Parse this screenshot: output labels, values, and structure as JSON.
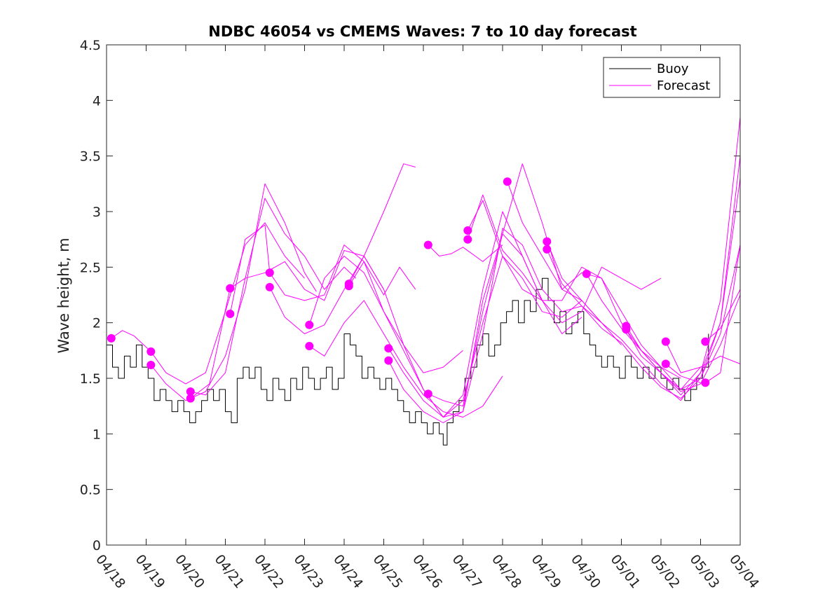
{
  "chart_data": {
    "type": "line",
    "title": "NDBC 46054 vs CMEMS Waves: 7 to 10 day forecast",
    "ylabel": "Wave height, m",
    "xlabel": "",
    "xlim": [
      0,
      16
    ],
    "ylim": [
      0,
      4.5
    ],
    "yticks": [
      0,
      0.5,
      1,
      1.5,
      2,
      2.5,
      3,
      3.5,
      4,
      4.5
    ],
    "ytick_labels": [
      "0",
      "0.5",
      "1",
      "1.5",
      "2",
      "2.5",
      "3",
      "3.5",
      "4",
      "4.5"
    ],
    "xticks": [
      0,
      1,
      2,
      3,
      4,
      5,
      6,
      7,
      8,
      9,
      10,
      11,
      12,
      13,
      14,
      15,
      16
    ],
    "xtick_labels": [
      "04/18",
      "04/19",
      "04/20",
      "04/21",
      "04/22",
      "04/23",
      "04/24",
      "04/25",
      "04/26",
      "04/27",
      "04/28",
      "04/29",
      "04/30",
      "05/01",
      "05/02",
      "05/03",
      "05/04"
    ],
    "grid": false,
    "legend_position": "top-right",
    "legend": [
      "Buoy",
      "Forecast"
    ],
    "colors": {
      "buoy": "#000000",
      "forecast": "#ff00ff",
      "axis": "#262626"
    },
    "series": [
      {
        "name": "Buoy",
        "color": "#000000",
        "x": [
          0,
          0.15,
          0.3,
          0.45,
          0.6,
          0.75,
          0.9,
          1.05,
          1.2,
          1.35,
          1.5,
          1.65,
          1.8,
          1.95,
          2.1,
          2.25,
          2.4,
          2.55,
          2.7,
          2.85,
          3,
          3.15,
          3.3,
          3.45,
          3.6,
          3.75,
          3.9,
          4.05,
          4.2,
          4.35,
          4.5,
          4.65,
          4.8,
          4.95,
          5.1,
          5.25,
          5.4,
          5.55,
          5.7,
          5.85,
          6,
          6.15,
          6.3,
          6.45,
          6.6,
          6.75,
          6.9,
          7.05,
          7.2,
          7.35,
          7.5,
          7.65,
          7.8,
          7.95,
          8.1,
          8.25,
          8.4,
          8.5,
          8.6,
          8.75,
          8.9,
          9.05,
          9.2,
          9.35,
          9.5,
          9.65,
          9.8,
          9.95,
          10.1,
          10.25,
          10.4,
          10.55,
          10.7,
          10.85,
          11,
          11.15,
          11.3,
          11.45,
          11.6,
          11.75,
          11.9,
          12.05,
          12.2,
          12.35,
          12.5,
          12.65,
          12.8,
          12.95,
          13.1,
          13.25,
          13.4,
          13.55,
          13.7,
          13.85,
          14,
          14.15,
          14.3,
          14.45,
          14.6,
          14.75,
          14.9,
          15.05,
          15.2
        ],
        "values": [
          1.8,
          1.6,
          1.5,
          1.7,
          1.6,
          1.8,
          1.6,
          1.5,
          1.3,
          1.4,
          1.3,
          1.2,
          1.3,
          1.2,
          1.1,
          1.2,
          1.3,
          1.4,
          1.3,
          1.4,
          1.2,
          1.1,
          1.5,
          1.6,
          1.5,
          1.6,
          1.4,
          1.3,
          1.5,
          1.4,
          1.3,
          1.5,
          1.4,
          1.6,
          1.5,
          1.4,
          1.5,
          1.6,
          1.4,
          1.5,
          1.9,
          1.8,
          1.7,
          1.5,
          1.6,
          1.5,
          1.4,
          1.5,
          1.4,
          1.3,
          1.2,
          1.1,
          1.2,
          1.1,
          1.0,
          1.1,
          1.0,
          0.9,
          1.1,
          1.2,
          1.3,
          1.5,
          1.6,
          1.8,
          1.9,
          1.7,
          1.8,
          2.0,
          2.1,
          2.2,
          2.0,
          2.2,
          2.1,
          2.3,
          2.4,
          2.2,
          2.0,
          2.1,
          1.9,
          2.0,
          2.1,
          1.9,
          1.8,
          1.7,
          1.6,
          1.7,
          1.6,
          1.5,
          1.7,
          1.6,
          1.5,
          1.6,
          1.5,
          1.6,
          1.5,
          1.4,
          1.5,
          1.4,
          1.3,
          1.4,
          1.5,
          1.6,
          1.9
        ]
      },
      {
        "name": "Forecast",
        "color": "#ff00ff",
        "x": [
          0.12,
          0.4,
          0.7,
          1.12,
          1.5,
          2.0,
          2.5,
          3.0,
          3.5,
          4.0,
          4.5,
          5.0
        ],
        "values": [
          1.86,
          1.93,
          1.88,
          1.74,
          1.55,
          1.45,
          1.55,
          2.1,
          2.7,
          2.9,
          2.6,
          2.4
        ]
      },
      {
        "name": "",
        "color": "#ff00ff",
        "x": [
          1.12,
          1.5,
          2.0,
          2.5,
          3.0,
          3.5,
          4.0,
          4.5,
          5.0,
          5.3
        ],
        "values": [
          1.62,
          1.45,
          1.3,
          1.38,
          1.7,
          2.3,
          3.25,
          2.9,
          2.45,
          2.28
        ]
      },
      {
        "name": "",
        "color": "#ff00ff",
        "x": [
          2.12,
          2.5,
          3.0,
          3.5,
          4.0,
          4.5,
          5.0,
          5.5,
          6.0,
          6.3
        ],
        "values": [
          1.38,
          1.35,
          1.55,
          2.4,
          3.12,
          2.8,
          2.6,
          2.3,
          2.5,
          2.4
        ]
      },
      {
        "name": "",
        "color": "#ff00ff",
        "x": [
          2.12,
          2.6,
          3.12,
          3.5,
          4.0,
          4.5,
          5.0,
          5.5,
          6.0,
          6.5,
          7.0
        ],
        "values": [
          1.32,
          1.45,
          2.31,
          2.4,
          2.45,
          2.55,
          2.3,
          2.2,
          2.65,
          2.6,
          2.3
        ]
      },
      {
        "name": "",
        "color": "#ff00ff",
        "x": [
          3.12,
          3.5,
          4.0,
          4.12,
          4.5,
          5.0,
          5.5,
          6.0,
          6.5,
          7.0,
          7.4,
          7.8
        ],
        "values": [
          2.08,
          2.75,
          2.88,
          2.45,
          2.25,
          2.2,
          2.25,
          2.7,
          2.55,
          2.25,
          2.5,
          2.3
        ]
      },
      {
        "name": "",
        "color": "#ff00ff",
        "x": [
          4.12,
          4.5,
          5.0,
          5.5,
          6.0,
          6.5,
          7.0,
          7.5,
          7.8
        ],
        "values": [
          2.32,
          2.05,
          1.9,
          1.98,
          2.3,
          2.6,
          3.0,
          3.43,
          3.4
        ]
      },
      {
        "name": "",
        "color": "#ff00ff",
        "x": [
          5.12,
          5.5,
          6.0,
          6.5,
          7.0,
          7.5,
          8.0,
          8.5,
          9.0
        ],
        "values": [
          1.98,
          2.4,
          2.6,
          2.45,
          2.1,
          1.8,
          1.55,
          1.6,
          1.75
        ]
      },
      {
        "name": "",
        "color": "#ff00ff",
        "x": [
          5.12,
          5.5,
          6.0,
          6.5,
          7.0,
          7.5,
          8.0,
          8.5,
          9.0,
          9.5,
          10.0
        ],
        "values": [
          1.79,
          1.7,
          2.0,
          2.2,
          1.9,
          1.6,
          1.35,
          1.2,
          1.15,
          1.25,
          1.52
        ]
      },
      {
        "name": "",
        "color": "#ff00ff",
        "x": [
          6.12,
          6.5,
          7.0,
          7.5,
          8.0,
          8.5,
          9.0,
          9.5,
          10.0,
          10.5,
          11.0
        ],
        "values": [
          2.35,
          2.6,
          2.3,
          1.8,
          1.4,
          1.15,
          1.2,
          2.2,
          2.8,
          2.6,
          2.2
        ]
      },
      {
        "name": "",
        "color": "#ff00ff",
        "x": [
          6.12,
          6.5,
          7.0,
          7.5,
          8.0,
          8.5,
          9.0,
          9.5,
          10.0,
          10.5,
          11.0,
          11.5,
          12.0
        ],
        "values": [
          2.33,
          2.55,
          2.1,
          1.75,
          1.4,
          1.15,
          1.3,
          2.0,
          2.6,
          2.4,
          2.1,
          2.05,
          2.2
        ]
      },
      {
        "name": "",
        "color": "#ff00ff",
        "x": [
          7.12,
          7.5,
          8.0,
          8.5,
          9.0,
          9.5,
          10.0,
          10.5,
          11.0,
          11.5,
          12.0
        ],
        "values": [
          1.77,
          1.55,
          1.3,
          1.15,
          1.35,
          2.3,
          3.0,
          2.6,
          2.2,
          1.9,
          2.05
        ]
      },
      {
        "name": "",
        "color": "#ff00ff",
        "x": [
          7.12,
          7.5,
          8.0,
          8.5,
          9.0,
          9.5,
          10.0,
          10.5,
          11.0,
          11.5,
          12.0,
          12.5
        ],
        "values": [
          1.66,
          1.4,
          1.2,
          1.1,
          1.2,
          1.9,
          2.85,
          2.7,
          2.3,
          2.1,
          2.15,
          2.0
        ]
      },
      {
        "name": "",
        "color": "#ff00ff",
        "x": [
          8.12,
          8.4,
          8.7,
          9.0,
          9.5,
          10.0
        ],
        "values": [
          2.7,
          2.6,
          2.62,
          2.68,
          2.55,
          2.7
        ]
      },
      {
        "name": "",
        "color": "#ff00ff",
        "x": [
          8.12,
          8.5,
          9.0,
          9.5,
          10.0,
          10.5,
          11.0,
          11.5,
          12.0,
          12.5,
          13.0
        ],
        "values": [
          1.36,
          1.3,
          1.25,
          2.1,
          2.8,
          3.43,
          2.9,
          2.3,
          2.2,
          2.0,
          1.8
        ]
      },
      {
        "name": "",
        "color": "#ff00ff",
        "x": [
          9.12,
          9.5,
          10.0,
          10.5,
          11.0,
          11.5,
          12.0,
          12.5,
          13.0,
          13.5,
          14.0
        ],
        "values": [
          2.83,
          3.1,
          2.6,
          2.3,
          2.2,
          2.0,
          2.1,
          2.5,
          2.4,
          2.3,
          2.4
        ]
      },
      {
        "name": "",
        "color": "#ff00ff",
        "x": [
          9.12,
          9.5,
          10.0,
          10.5,
          11.0,
          11.5,
          12.0,
          12.5,
          13.0,
          13.5,
          14.0,
          14.5
        ],
        "values": [
          2.75,
          3.15,
          2.65,
          2.45,
          2.2,
          2.2,
          2.5,
          2.4,
          2.1,
          1.8,
          1.6,
          1.5
        ]
      },
      {
        "name": "",
        "color": "#ff00ff",
        "x": [
          10.12,
          10.5,
          11.0,
          11.5,
          12.0,
          12.5,
          13.0,
          13.5,
          14.0,
          14.5,
          15.0
        ],
        "values": [
          3.27,
          2.9,
          2.6,
          2.3,
          2.45,
          2.4,
          2.0,
          1.75,
          1.55,
          1.4,
          1.6
        ]
      },
      {
        "name": "",
        "color": "#ff00ff",
        "x": [
          11.12,
          11.5,
          12.0,
          12.5,
          13.0,
          13.5,
          14.0,
          14.5,
          15.0,
          15.5,
          16.0
        ],
        "values": [
          2.73,
          2.4,
          2.2,
          2.0,
          1.85,
          1.65,
          1.45,
          1.3,
          1.55,
          2.0,
          3.5
        ]
      },
      {
        "name": "",
        "color": "#ff00ff",
        "x": [
          11.12,
          11.5,
          12.0,
          12.5,
          13.0,
          13.5,
          14.0,
          14.5,
          15.0,
          15.5,
          16.0
        ],
        "values": [
          2.66,
          2.35,
          2.15,
          1.95,
          1.82,
          1.6,
          1.42,
          1.32,
          1.5,
          1.9,
          2.7
        ]
      },
      {
        "name": "",
        "color": "#ff00ff",
        "x": [
          12.12,
          12.5,
          13.0,
          13.5,
          14.0,
          14.5,
          15.0,
          15.5,
          16.0
        ],
        "values": [
          2.44,
          2.2,
          1.95,
          1.75,
          1.55,
          1.35,
          1.55,
          2.2,
          3.85
        ]
      },
      {
        "name": "",
        "color": "#ff00ff",
        "x": [
          13.12,
          13.5,
          14.0,
          14.5,
          15.0,
          15.5,
          16.0
        ],
        "values": [
          1.97,
          1.75,
          1.6,
          1.4,
          1.5,
          2.0,
          3.3
        ]
      },
      {
        "name": "",
        "color": "#ff00ff",
        "x": [
          13.12,
          13.5,
          14.0,
          14.5,
          15.0,
          15.5,
          16.0
        ],
        "values": [
          1.94,
          1.7,
          1.55,
          1.38,
          1.45,
          1.8,
          2.25
        ]
      },
      {
        "name": "",
        "color": "#ff00ff",
        "x": [
          14.12,
          14.5,
          15.0,
          15.5,
          16.0
        ],
        "values": [
          1.83,
          1.55,
          1.6,
          1.7,
          1.63
        ]
      },
      {
        "name": "",
        "color": "#ff00ff",
        "x": [
          14.12,
          14.5,
          15.0
        ],
        "values": [
          1.63,
          1.52,
          1.46
        ]
      },
      {
        "name": "",
        "color": "#ff00ff",
        "x": [
          15.12,
          15.5,
          16.0
        ],
        "values": [
          1.83,
          1.95,
          2.3
        ]
      },
      {
        "name": "",
        "color": "#ff00ff",
        "x": [
          15.12,
          15.5,
          16.0
        ],
        "values": [
          1.46,
          1.55,
          2.7
        ]
      }
    ],
    "markers": [
      {
        "x": 0.12,
        "y": 1.86
      },
      {
        "x": 1.12,
        "y": 1.74
      },
      {
        "x": 1.12,
        "y": 1.62
      },
      {
        "x": 2.12,
        "y": 1.38
      },
      {
        "x": 2.12,
        "y": 1.32
      },
      {
        "x": 3.12,
        "y": 2.31
      },
      {
        "x": 3.12,
        "y": 2.08
      },
      {
        "x": 4.12,
        "y": 2.45
      },
      {
        "x": 4.12,
        "y": 2.32
      },
      {
        "x": 5.12,
        "y": 1.98
      },
      {
        "x": 5.12,
        "y": 1.79
      },
      {
        "x": 6.12,
        "y": 2.35
      },
      {
        "x": 6.12,
        "y": 2.33
      },
      {
        "x": 7.12,
        "y": 1.77
      },
      {
        "x": 7.12,
        "y": 1.66
      },
      {
        "x": 8.12,
        "y": 2.7
      },
      {
        "x": 8.12,
        "y": 1.36
      },
      {
        "x": 9.12,
        "y": 2.83
      },
      {
        "x": 9.12,
        "y": 2.75
      },
      {
        "x": 10.12,
        "y": 3.27
      },
      {
        "x": 11.12,
        "y": 2.73
      },
      {
        "x": 11.12,
        "y": 2.66
      },
      {
        "x": 12.12,
        "y": 2.44
      },
      {
        "x": 13.12,
        "y": 1.97
      },
      {
        "x": 13.12,
        "y": 1.94
      },
      {
        "x": 14.12,
        "y": 1.83
      },
      {
        "x": 14.12,
        "y": 1.63
      },
      {
        "x": 15.12,
        "y": 1.83
      },
      {
        "x": 15.12,
        "y": 1.46
      }
    ]
  }
}
